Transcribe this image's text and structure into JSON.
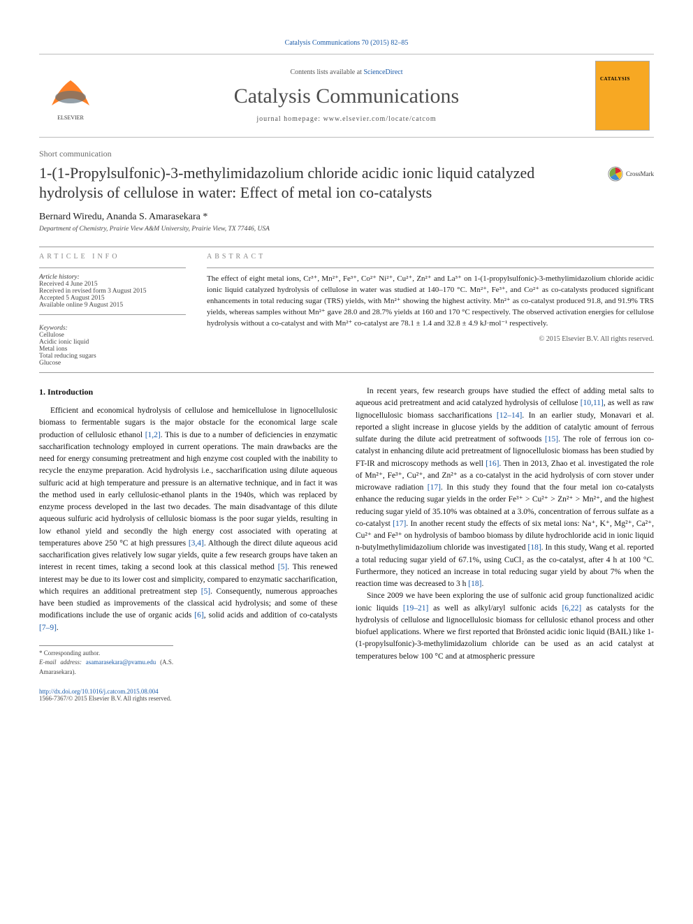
{
  "top_link": "Catalysis Communications 70 (2015) 82–85",
  "header": {
    "contents_prefix": "Contents lists available at ",
    "contents_link": "ScienceDirect",
    "journal_name": "Catalysis Communications",
    "homepage_label": "journal homepage: ",
    "homepage_url": "www.elsevier.com/locate/catcom",
    "cover_label": "CATALYSIS"
  },
  "crossmark_label": "CrossMark",
  "article": {
    "type": "Short communication",
    "title": "1-(1-Propylsulfonic)-3-methylimidazolium chloride acidic ionic liquid catalyzed hydrolysis of cellulose in water: Effect of metal ion co-catalysts",
    "authors": "Bernard Wiredu, Ananda S. Amarasekara *",
    "affiliation": "Department of Chemistry, Prairie View A&M University, Prairie View, TX 77446, USA"
  },
  "info": {
    "header": "article info",
    "history_label": "Article history:",
    "history": [
      "Received 4 June 2015",
      "Received in revised form 3 August 2015",
      "Accepted 5 August 2015",
      "Available online 9 August 2015"
    ],
    "keywords_label": "Keywords:",
    "keywords": [
      "Cellulose",
      "Acidic ionic liquid",
      "Metal ions",
      "Total reducing sugars",
      "Glucose"
    ]
  },
  "abstract": {
    "header": "abstract",
    "text": "The effect of eight metal ions, Cr³⁺, Mn²⁺, Fe³⁺, Co²⁺ Ni²⁺, Cu²⁺, Zn²⁺ and La³⁺ on 1-(1-propylsulfonic)-3-methylimidazolium chloride acidic ionic liquid catalyzed hydrolysis of cellulose in water was studied at 140–170 °C. Mn²⁺, Fe³⁺, and Co²⁺ as co-catalysts produced significant enhancements in total reducing sugar (TRS) yields, with Mn²⁺ showing the highest activity. Mn²⁺ as co-catalyst produced 91.8, and 91.9% TRS yields, whereas samples without Mn²⁺ gave 28.0 and 28.7% yields at 160 and 170 °C respectively. The observed activation energies for cellulose hydrolysis without a co-catalyst and with Mn²⁺ co-catalyst are 78.1 ± 1.4 and 32.8 ± 4.9 kJ·mol⁻¹ respectively.",
    "copyright": "© 2015 Elsevier B.V. All rights reserved."
  },
  "body": {
    "section1_head": "1. Introduction",
    "col1_p1": "Efficient and economical hydrolysis of cellulose and hemicellulose in lignocellulosic biomass to fermentable sugars is the major obstacle for the economical large scale production of cellulosic ethanol [1,2]. This is due to a number of deficiencies in enzymatic saccharification technology employed in current operations. The main drawbacks are the need for energy consuming pretreatment and high enzyme cost coupled with the inability to recycle the enzyme preparation. Acid hydrolysis i.e., saccharification using dilute aqueous sulfuric acid at high temperature and pressure is an alternative technique, and in fact it was the method used in early cellulosic-ethanol plants in the 1940s, which was replaced by enzyme process developed in the last two decades. The main disadvantage of this dilute aqueous sulfuric acid hydrolysis of cellulosic biomass is the poor sugar yields, resulting in low ethanol yield and secondly the high energy cost associated with operating at temperatures above 250 °C at high pressures [3,4]. Although the direct dilute aqueous acid saccharification gives relatively low sugar yields, quite a few research groups have taken an interest in recent times, taking a second look at this classical method [5]. This renewed interest may be due to its lower cost and simplicity, compared to enzymatic saccharification, which requires an additional pretreatment step [5]. Consequently, numerous approaches have been studied as improvements of the classical acid hydrolysis; and some of these modifications include the use of organic acids [6], solid acids and addition of co-catalysts [7–9].",
    "col2_p1": "In recent years, few research groups have studied the effect of adding metal salts to aqueous acid pretreatment and acid catalyzed hydrolysis of cellulose [10,11], as well as raw lignocellulosic biomass saccharifications [12–14]. In an earlier study, Monavari et al. reported a slight increase in glucose yields by the addition of catalytic amount of ferrous sulfate during the dilute acid pretreatment of softwoods [15]. The role of ferrous ion co-catalyst in enhancing dilute acid pretreatment of lignocellulosic biomass has been studied by FT-IR and microscopy methods as well [16]. Then in 2013, Zhao et al. investigated the role of Mn²⁺, Fe³⁺, Cu²⁺, and Zn²⁺ as a co-catalyst in the acid hydrolysis of corn stover under microwave radiation [17]. In this study they found that the four metal ion co-catalysts enhance the reducing sugar yields in the order Fe³⁺ > Cu²⁺ > Zn²⁺ > Mn²⁺, and the highest reducing sugar yield of 35.10% was obtained at a 3.0%, concentration of ferrous sulfate as a co-catalyst [17]. In another recent study the effects of six metal ions: Na⁺, K⁺, Mg²⁺, Ca²⁺, Cu²⁺ and Fe³⁺ on hydrolysis of bamboo biomass by dilute hydrochloride acid in ionic liquid n-butylmethylimidazolium chloride was investigated [18]. In this study, Wang et al. reported a total reducing sugar yield of 67.1%, using CuCl₂ as the co-catalyst, after 4 h at 100 °C. Furthermore, they noticed an increase in total reducing sugar yield by about 7% when the reaction time was decreased to 3 h [18].",
    "col2_p2": "Since 2009 we have been exploring the use of sulfonic acid group functionalized acidic ionic liquids [19–21] as well as alkyl/aryl sulfonic acids [6,22] as catalysts for the hydrolysis of cellulose and lignocellulosic biomass for cellulosic ethanol process and other biofuel applications. Where we first reported that Brönsted acidic ionic liquid (BAIL) like 1-(1-propylsulfonic)-3-methylimidazolium chloride can be used as an acid catalyst at temperatures below 100 °C and at atmospheric pressure"
  },
  "refs_col1": [
    "[1,2]",
    "[3,4]",
    "[5]",
    "[5]",
    "[6]",
    "[7–9]"
  ],
  "refs_col2": [
    "[10,11]",
    "[12–14]",
    "[15]",
    "[16]",
    "[17]",
    "[17]",
    "[18]",
    "[18]",
    "[19–21]",
    "[6,22]"
  ],
  "correspondence": {
    "star": "* Corresponding author.",
    "email_label": "E-mail address: ",
    "email": "asamarasekara@pvamu.edu",
    "email_suffix": " (A.S. Amarasekara)."
  },
  "footer": {
    "doi": "http://dx.doi.org/10.1016/j.catcom.2015.08.004",
    "issn": "1566-7367/© 2015 Elsevier B.V. All rights reserved."
  },
  "colors": {
    "link": "#1a5aa8",
    "cover": "#f7a823",
    "elsevier_orange": "#ff6a00",
    "elsevier_gray": "#5a6d7a",
    "crossmark_red": "#d9263a",
    "crossmark_yellow": "#f7be22",
    "crossmark_blue": "#3f8bd0"
  }
}
